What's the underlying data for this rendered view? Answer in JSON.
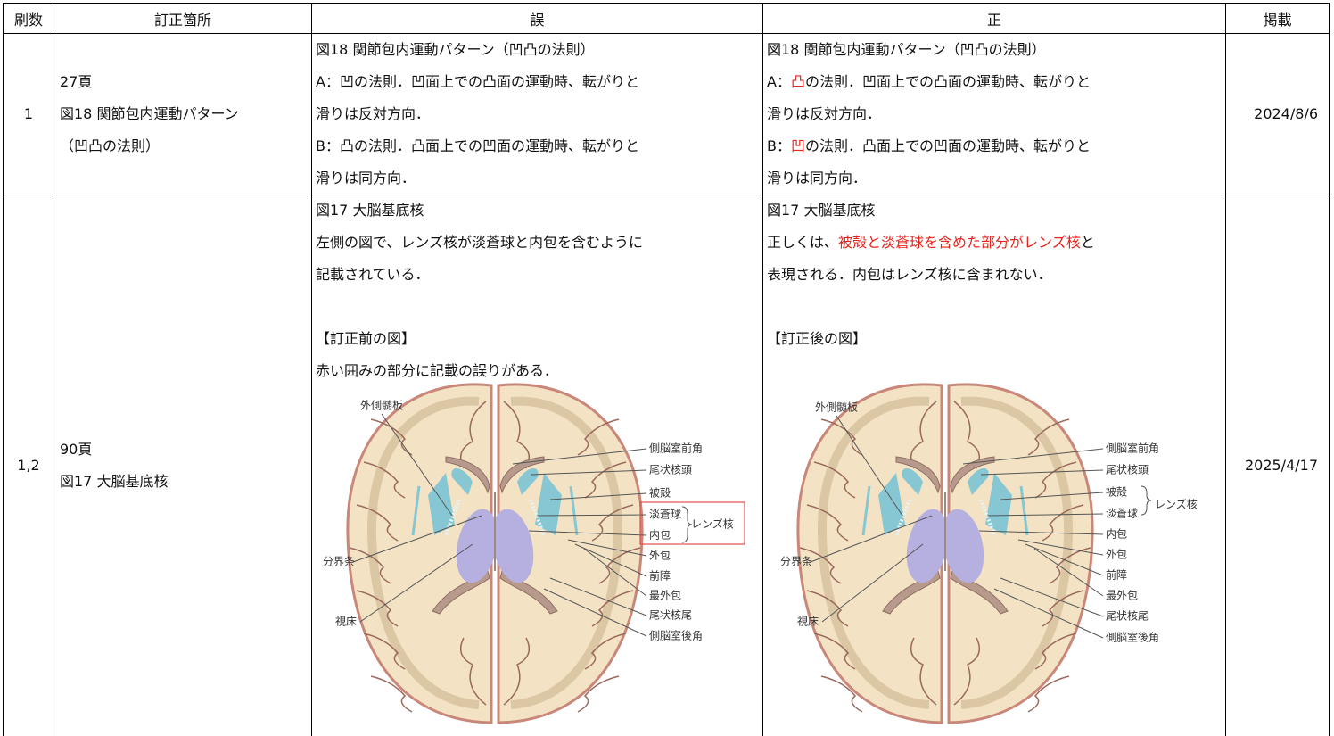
{
  "table": {
    "header": [
      "刷数",
      "訂正箇所",
      "誤",
      "正",
      "掲載"
    ],
    "rows": [
      {
        "printing": "1",
        "location": [
          "27頁",
          "図18 関節包内運動パターン",
          "（凹凸の法則）"
        ],
        "wrong": [
          "図18 関節包内運動パターン（凹凸の法則）",
          "A：凹の法則．凹面上での凸面の運動時、転がりと",
          "滑りは反対方向．",
          "B：凸の法則．凸面上での凹面の運動時、転がりと",
          "滑りは同方向．"
        ],
        "correct": [
          "図18 関節包内運動パターン（凹凸の法則）",
          [
            {
              "text": "A："
            },
            {
              "text": "凸",
              "highlight": true
            },
            {
              "text": "の法則．凹面上での凸面の運動時、転がりと"
            }
          ],
          "滑りは反対方向．",
          [
            {
              "text": "B："
            },
            {
              "text": "凹",
              "highlight": true
            },
            {
              "text": "の法則．凸面上での凹面の運動時、転がりと"
            }
          ],
          "滑りは同方向．"
        ],
        "date": "2024/8/6"
      },
      {
        "printing": "1,2",
        "location": [
          "90頁",
          "図17 大脳基底核"
        ],
        "wrong": [
          "図17 大脳基底核",
          "左側の図で、レンズ核が淡蒼球と内包を含むように",
          "記載されている．",
          "【訂正前の図】",
          "赤い囲みの部分に記載の誤りがある．"
        ],
        "correct": [
          "図17 大脳基底核",
          [
            {
              "text": "正しくは、"
            },
            {
              "text": "被殻と淡蒼球を含めた部分がレンズ核",
              "highlight": true
            },
            {
              "text": "と"
            }
          ],
          "表現される．内包はレンズ核に含まれない．",
          "【訂正後の図】"
        ],
        "date": "2025/4/17"
      }
    ]
  },
  "figures": {
    "before": {
      "labels": [
        "外側髄板",
        "側脳室前角",
        "尾状核頭",
        "被殻",
        "淡蒼球",
        "内包",
        "レンズ核",
        "外包",
        "前障",
        "最外包",
        "尾状核尾",
        "側脳室後角",
        "分界条",
        "視床"
      ]
    },
    "after": {
      "labels": [
        "外側髄板",
        "側脳室前角",
        "尾状核頭",
        "被殻",
        "淡蒼球",
        "レンズ核",
        "内包",
        "外包",
        "前障",
        "最外包",
        "尾状核尾",
        "側脳室後角",
        "分界条",
        "視床"
      ]
    }
  }
}
